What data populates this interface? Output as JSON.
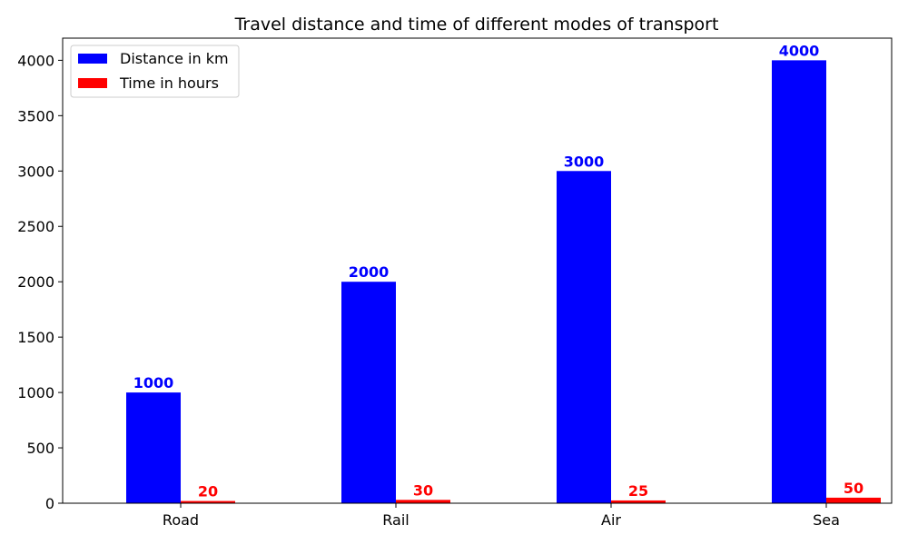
{
  "chart_data": {
    "type": "bar",
    "title": "Travel distance and time of different modes of transport",
    "xlabel": "",
    "ylabel": "",
    "categories": [
      "Road",
      "Rail",
      "Air",
      "Sea"
    ],
    "series": [
      {
        "name": "Distance in km",
        "color": "#0000ff",
        "values": [
          1000,
          2000,
          3000,
          4000
        ]
      },
      {
        "name": "Time in hours",
        "color": "#ff0000",
        "values": [
          20,
          30,
          25,
          50
        ]
      }
    ],
    "ylim": [
      0,
      4200
    ],
    "yticks": [
      0,
      500,
      1000,
      1500,
      2000,
      2500,
      3000,
      3500,
      4000
    ],
    "grid": false,
    "legend_position": "top-left",
    "data_labels": true
  }
}
